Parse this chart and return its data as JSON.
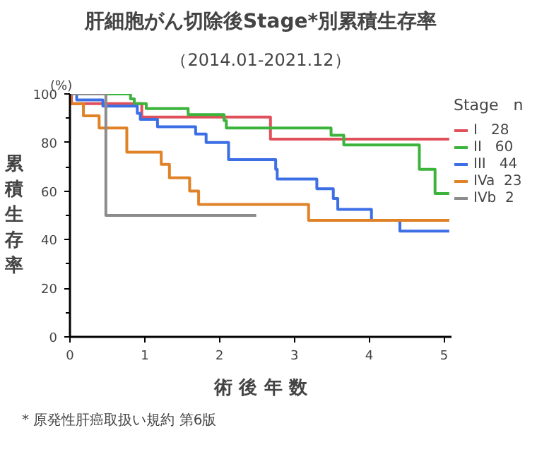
{
  "chart_data": {
    "type": "step",
    "title": "肝細胞がん切除後Stage*別累積生存率",
    "subtitle": "（2014.01-2021.12）",
    "xlabel": "術 後 年 数",
    "ylabel": "累積生存率",
    "legend_title": "Stage   n",
    "annotations": [
      "(%)",
      "* 原発性肝癌取扱い規約 第6版"
    ],
    "xlim": [
      0,
      5.1
    ],
    "xticks": [
      0,
      1,
      2,
      3,
      4,
      5
    ],
    "ylim": [
      0,
      100
    ],
    "yticks": [
      0,
      20,
      40,
      60,
      80,
      100
    ],
    "legend": "right",
    "grid": false,
    "series": [
      {
        "name": "I   28",
        "color": "#e0505a",
        "x": [
          0,
          0.02,
          0.96,
          2.68,
          5.07
        ],
        "values": [
          100,
          96,
          90.5,
          81.4,
          81.4
        ]
      },
      {
        "name": "II   60",
        "color": "#3cb43c",
        "x": [
          0,
          0.81,
          0.86,
          1.02,
          1.58,
          2.06,
          2.09,
          3.49,
          3.66,
          4.67,
          4.88,
          5.07
        ],
        "values": [
          100,
          98,
          96,
          94,
          91.5,
          89,
          86,
          83,
          79,
          69,
          59,
          59
        ]
      },
      {
        "name": "III   44",
        "color": "#3c6ee6",
        "x": [
          0,
          0.09,
          0.44,
          0.9,
          0.94,
          1.17,
          1.68,
          1.82,
          2.12,
          2.75,
          2.77,
          3.3,
          3.52,
          3.58,
          4.03,
          4.41,
          5.07
        ],
        "values": [
          100,
          97.5,
          95,
          92,
          89.5,
          86.5,
          83.5,
          80,
          73,
          69,
          65,
          61,
          57,
          52.5,
          48,
          43.5,
          43.5
        ]
      },
      {
        "name": "IVa  23",
        "color": "#e08228",
        "x": [
          0,
          0.01,
          0.18,
          0.39,
          0.76,
          1.22,
          1.33,
          1.6,
          1.72,
          3.19,
          5.07
        ],
        "values": [
          100,
          96,
          91,
          86,
          76,
          71,
          65.5,
          60,
          54.5,
          48,
          48
        ]
      },
      {
        "name": "IVb  2",
        "color": "#8c8c8c",
        "x": [
          0,
          0.48,
          2.49
        ],
        "values": [
          100,
          50,
          50
        ]
      }
    ]
  }
}
